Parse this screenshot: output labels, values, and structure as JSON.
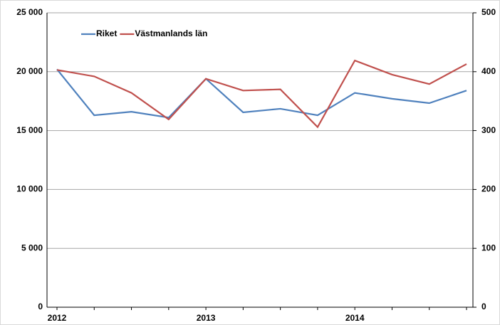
{
  "chart_data": {
    "type": "line",
    "categories": [
      "2012",
      null,
      null,
      null,
      "2013",
      null,
      null,
      null,
      "2014",
      null,
      null,
      null
    ],
    "series": [
      {
        "name": "Riket",
        "color": "#4f81bd",
        "values": [
          20200,
          16300,
          16600,
          16100,
          19400,
          16550,
          16850,
          16300,
          18200,
          17700,
          17330,
          18400
        ]
      },
      {
        "name": "Västmanlands län",
        "color": "#c0504d",
        "axis": "y2",
        "values": [
          403,
          392,
          364,
          319,
          388,
          368,
          370,
          306,
          419,
          395,
          379,
          413
        ]
      }
    ],
    "ylim": [
      0,
      25000
    ],
    "yticks": [
      0,
      {
        "value": 5000,
        "label": "5 000"
      },
      {
        "value": 10000,
        "label": "10 000"
      },
      {
        "value": 15000,
        "label": "15 000"
      },
      {
        "value": 20000,
        "label": "20 000"
      },
      {
        "value": 25000,
        "label": "25 000"
      }
    ],
    "y2lim": [
      0,
      500
    ],
    "y2ticks": [
      0,
      100,
      200,
      300,
      400,
      500
    ],
    "grid": true,
    "legend": "upper left"
  }
}
